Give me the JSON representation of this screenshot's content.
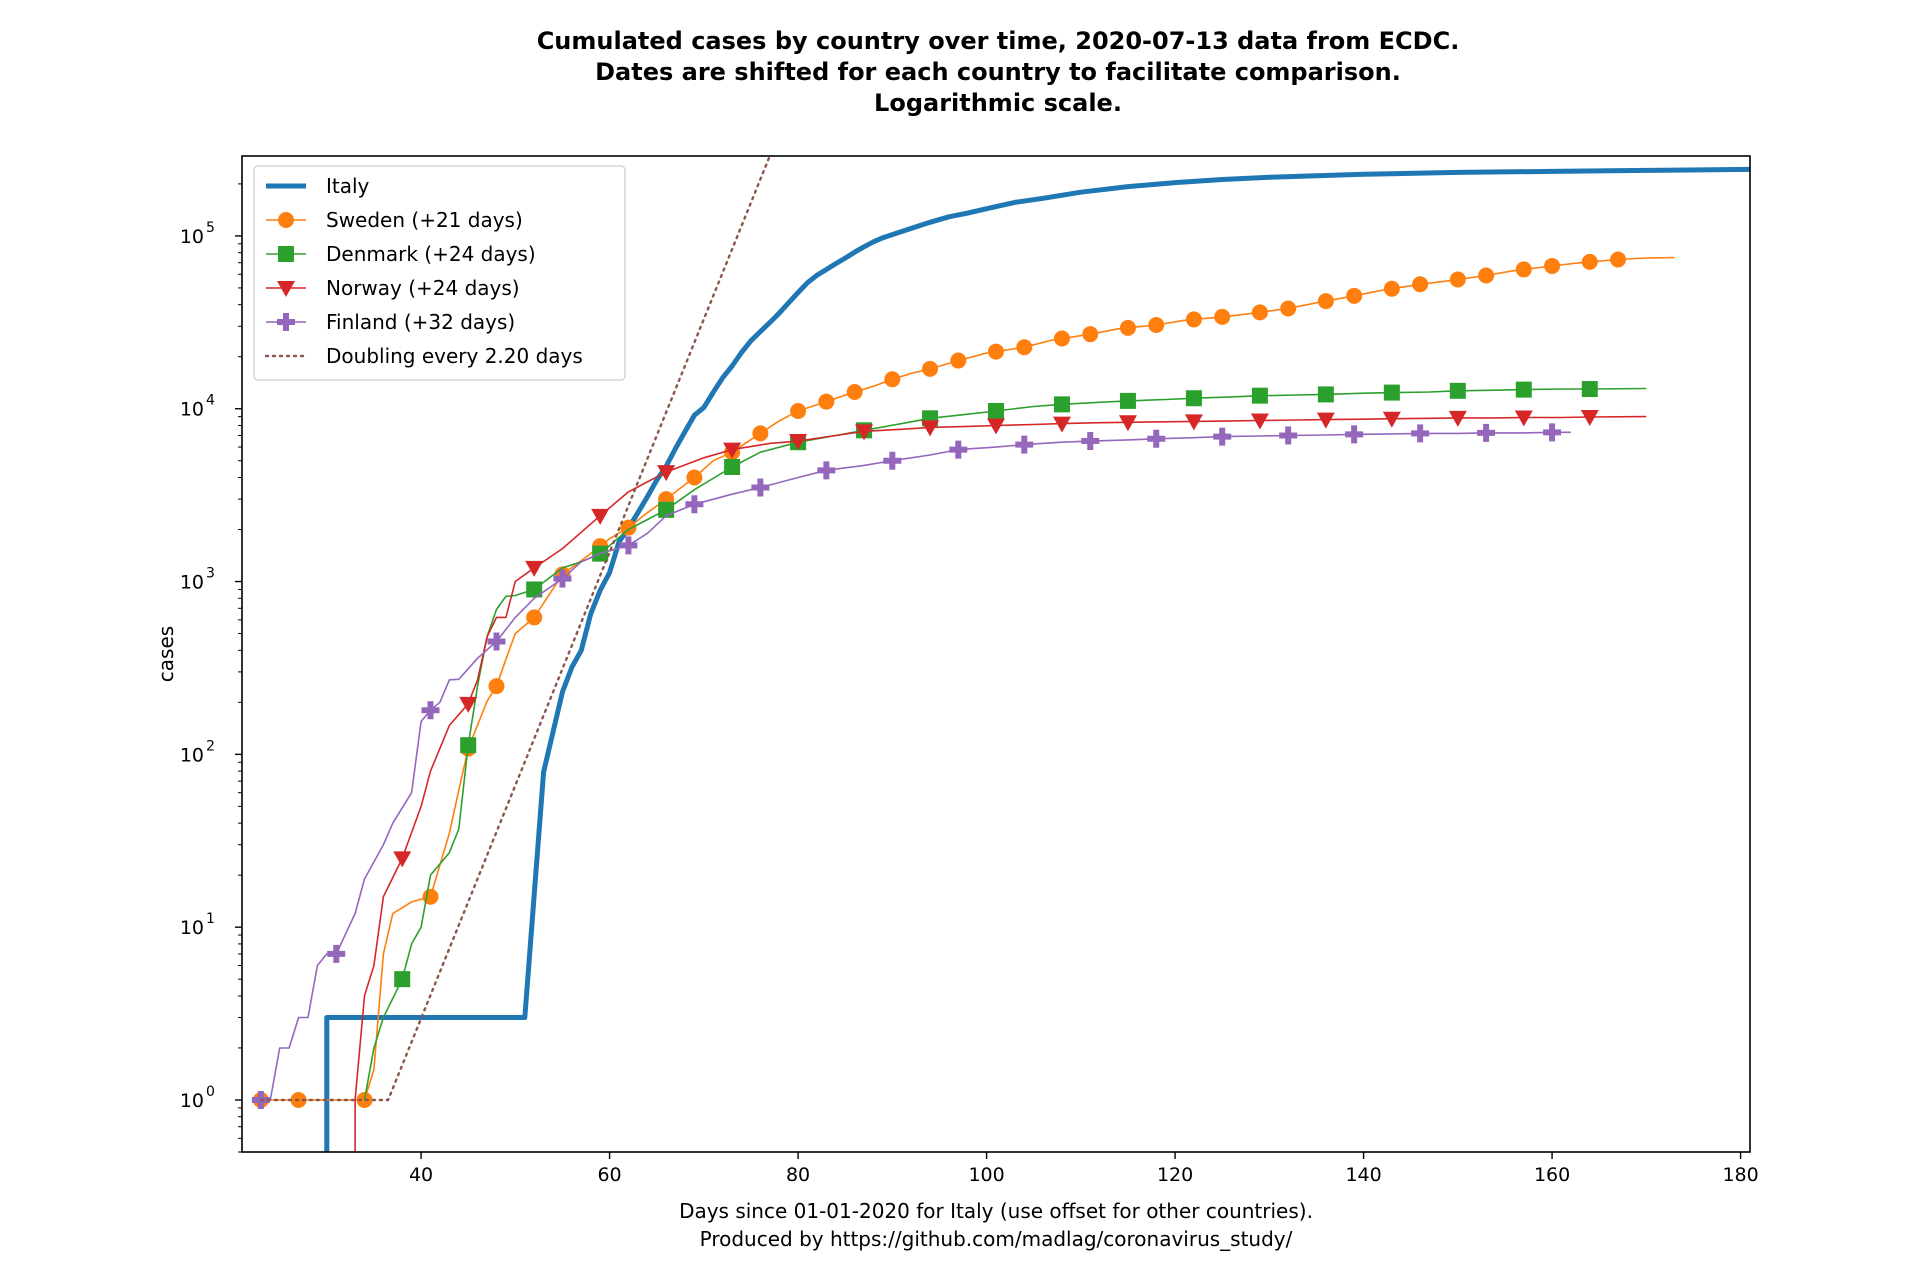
{
  "chart_data": {
    "type": "line",
    "title": [
      "Cumulated cases by country over time, 2020-07-13 data from ECDC.",
      "Dates are shifted for each country to facilitate comparison.",
      "Logarithmic scale."
    ],
    "xlabel": [
      "Days since 01-01-2020 for Italy (use offset for other countries).",
      "Produced by https://github.com/madlag/coronavirus_study/"
    ],
    "ylabel": "cases",
    "x_scale": "linear",
    "y_scale": "log",
    "xlim": [
      21,
      181
    ],
    "ylim": [
      0.5,
      290000
    ],
    "x_ticks": [
      40,
      60,
      80,
      100,
      120,
      140,
      160,
      180
    ],
    "y_ticks": [
      {
        "value": 1,
        "base": "10",
        "exp": "0"
      },
      {
        "value": 10,
        "base": "10",
        "exp": "1"
      },
      {
        "value": 100,
        "base": "10",
        "exp": "2"
      },
      {
        "value": 1000,
        "base": "10",
        "exp": "3"
      },
      {
        "value": 10000,
        "base": "10",
        "exp": "4"
      },
      {
        "value": 100000,
        "base": "10",
        "exp": "5"
      }
    ],
    "grid": false,
    "legend_position": "top-left",
    "series": [
      {
        "name": "Italy",
        "color": "#1f77b4",
        "marker": "none",
        "line_style": "solid",
        "line_weight": "thick",
        "step_points": [
          [
            30,
            0.3
          ],
          [
            30,
            3
          ],
          [
            51,
            3
          ],
          [
            53,
            79
          ],
          [
            55,
            230
          ],
          [
            56,
            320
          ],
          [
            57,
            400
          ],
          [
            58,
            650
          ],
          [
            59,
            888
          ],
          [
            60,
            1128
          ],
          [
            61,
            1694
          ],
          [
            62,
            2036
          ],
          [
            63,
            2502
          ],
          [
            64,
            3089
          ],
          [
            65,
            3858
          ],
          [
            66,
            4636
          ],
          [
            67,
            5883
          ],
          [
            68,
            7375
          ],
          [
            69,
            9172
          ],
          [
            70,
            10149
          ],
          [
            71,
            12462
          ],
          [
            72,
            15113
          ],
          [
            73,
            17660
          ],
          [
            74,
            21157
          ],
          [
            75,
            24747
          ],
          [
            76,
            27980
          ],
          [
            77,
            31506
          ],
          [
            78,
            35713
          ],
          [
            79,
            41035
          ],
          [
            80,
            47021
          ],
          [
            81,
            53578
          ],
          [
            82,
            59138
          ],
          [
            83,
            63927
          ],
          [
            84,
            69176
          ],
          [
            85,
            74386
          ],
          [
            86,
            80539
          ],
          [
            87,
            86498
          ],
          [
            88,
            92472
          ],
          [
            89,
            97689
          ],
          [
            90,
            101739
          ],
          [
            92,
            110574
          ],
          [
            94,
            119827
          ],
          [
            96,
            128948
          ],
          [
            98,
            135586
          ],
          [
            100,
            143626
          ],
          [
            103,
            156363
          ],
          [
            106,
            165155
          ],
          [
            110,
            178972
          ],
          [
            115,
            192994
          ],
          [
            120,
            203591
          ],
          [
            125,
            211938
          ],
          [
            130,
            218268
          ],
          [
            140,
            227364
          ],
          [
            150,
            233019
          ],
          [
            160,
            236305
          ],
          [
            170,
            239410
          ],
          [
            181,
            242639
          ]
        ]
      },
      {
        "name": "Sweden (+21 days)",
        "color": "#ff7f0e",
        "marker": "circle",
        "line_style": "solid",
        "line_weight": "thin",
        "points": [
          [
            23,
            1
          ],
          [
            27,
            1
          ],
          [
            34,
            1
          ],
          [
            35,
            1.5
          ],
          [
            36,
            7
          ],
          [
            37,
            12
          ],
          [
            39,
            14
          ],
          [
            41,
            15
          ],
          [
            43,
            35
          ],
          [
            44,
            62
          ],
          [
            45,
            108
          ],
          [
            47,
            203
          ],
          [
            48,
            248
          ],
          [
            49,
            355
          ],
          [
            50,
            500
          ],
          [
            52,
            620
          ],
          [
            55,
            1100
          ],
          [
            58,
            1450
          ],
          [
            60,
            1770
          ],
          [
            62,
            2050
          ],
          [
            64,
            2500
          ],
          [
            66,
            3000
          ],
          [
            69,
            4000
          ],
          [
            71,
            5000
          ],
          [
            73,
            5600
          ],
          [
            74,
            6100
          ],
          [
            76,
            7200
          ],
          [
            78,
            8500
          ],
          [
            80,
            9700
          ],
          [
            83,
            11000
          ],
          [
            86,
            12500
          ],
          [
            88,
            13500
          ],
          [
            90,
            14800
          ],
          [
            92,
            16000
          ],
          [
            94,
            17000
          ],
          [
            97,
            19000
          ],
          [
            100,
            21000
          ],
          [
            104,
            22700
          ],
          [
            107,
            25000
          ],
          [
            111,
            27000
          ],
          [
            114,
            29000
          ],
          [
            118,
            30500
          ],
          [
            121,
            32500
          ],
          [
            125,
            34000
          ],
          [
            128,
            35500
          ],
          [
            132,
            38000
          ],
          [
            135,
            41000
          ],
          [
            139,
            45000
          ],
          [
            142,
            48500
          ],
          [
            146,
            52500
          ],
          [
            149,
            55000
          ],
          [
            153,
            59000
          ],
          [
            156,
            63000
          ],
          [
            160,
            67000
          ],
          [
            163,
            70000
          ],
          [
            167,
            73000
          ],
          [
            170,
            74500
          ],
          [
            173,
            75000
          ]
        ],
        "marker_x": [
          23,
          27,
          34,
          41,
          45,
          48,
          52,
          55,
          59,
          62,
          66,
          69,
          73,
          76,
          80,
          83,
          86,
          90,
          94,
          97,
          101,
          104,
          108,
          111,
          115,
          118,
          122,
          125,
          129,
          132,
          136,
          139,
          143,
          146,
          150,
          153,
          157,
          160,
          164,
          167
        ]
      },
      {
        "name": "Denmark (+24 days)",
        "color": "#2ca02c",
        "marker": "square",
        "line_style": "solid",
        "line_weight": "thin",
        "points": [
          [
            34,
            1
          ],
          [
            35,
            2
          ],
          [
            36,
            3
          ],
          [
            38,
            5
          ],
          [
            39,
            8
          ],
          [
            40,
            10
          ],
          [
            41,
            20
          ],
          [
            43,
            27
          ],
          [
            44,
            37
          ],
          [
            45,
            113
          ],
          [
            46,
            250
          ],
          [
            47,
            480
          ],
          [
            48,
            690
          ],
          [
            49,
            820
          ],
          [
            50,
            830
          ],
          [
            52,
            900
          ],
          [
            55,
            1200
          ],
          [
            57,
            1300
          ],
          [
            59,
            1450
          ],
          [
            62,
            2000
          ],
          [
            66,
            2600
          ],
          [
            69,
            3400
          ],
          [
            73,
            4600
          ],
          [
            76,
            5600
          ],
          [
            80,
            6400
          ],
          [
            84,
            7000
          ],
          [
            87,
            7500
          ],
          [
            91,
            8200
          ],
          [
            94,
            8800
          ],
          [
            98,
            9300
          ],
          [
            101,
            9700
          ],
          [
            105,
            10300
          ],
          [
            108,
            10600
          ],
          [
            112,
            10900
          ],
          [
            115,
            11100
          ],
          [
            119,
            11300
          ],
          [
            122,
            11500
          ],
          [
            126,
            11700
          ],
          [
            129,
            11900
          ],
          [
            133,
            12000
          ],
          [
            136,
            12100
          ],
          [
            140,
            12300
          ],
          [
            143,
            12400
          ],
          [
            147,
            12500
          ],
          [
            150,
            12700
          ],
          [
            154,
            12800
          ],
          [
            157,
            12900
          ],
          [
            161,
            13000
          ],
          [
            164,
            13000
          ],
          [
            170,
            13100
          ]
        ],
        "marker_x": [
          38,
          45,
          52,
          59,
          66,
          73,
          80,
          87,
          94,
          101,
          108,
          115,
          122,
          129,
          136,
          143,
          150,
          157,
          164
        ]
      },
      {
        "name": "Norway (+24 days)",
        "color": "#d62728",
        "marker": "triangle-down",
        "line_style": "solid",
        "line_weight": "thin",
        "points": [
          [
            33,
            0.5
          ],
          [
            33,
            1
          ],
          [
            34,
            4
          ],
          [
            35,
            6
          ],
          [
            36,
            15
          ],
          [
            38,
            25
          ],
          [
            40,
            50
          ],
          [
            41,
            80
          ],
          [
            43,
            147
          ],
          [
            45,
            196
          ],
          [
            46,
            270
          ],
          [
            47,
            480
          ],
          [
            48,
            620
          ],
          [
            49,
            620
          ],
          [
            50,
            1000
          ],
          [
            52,
            1200
          ],
          [
            55,
            1550
          ],
          [
            59,
            2400
          ],
          [
            62,
            3300
          ],
          [
            66,
            4300
          ],
          [
            70,
            5200
          ],
          [
            73,
            5800
          ],
          [
            77,
            6300
          ],
          [
            80,
            6500
          ],
          [
            84,
            7000
          ],
          [
            87,
            7400
          ],
          [
            91,
            7600
          ],
          [
            94,
            7800
          ],
          [
            98,
            7900
          ],
          [
            101,
            8000
          ],
          [
            105,
            8100
          ],
          [
            108,
            8200
          ],
          [
            112,
            8300
          ],
          [
            115,
            8350
          ],
          [
            119,
            8400
          ],
          [
            122,
            8450
          ],
          [
            126,
            8500
          ],
          [
            129,
            8550
          ],
          [
            133,
            8600
          ],
          [
            136,
            8650
          ],
          [
            140,
            8700
          ],
          [
            143,
            8750
          ],
          [
            147,
            8800
          ],
          [
            150,
            8850
          ],
          [
            154,
            8850
          ],
          [
            157,
            8900
          ],
          [
            161,
            8900
          ],
          [
            164,
            8950
          ],
          [
            170,
            9000
          ]
        ],
        "marker_x": [
          38,
          45,
          52,
          59,
          66,
          73,
          80,
          87,
          94,
          101,
          108,
          115,
          122,
          129,
          136,
          143,
          150,
          157,
          164
        ]
      },
      {
        "name": "Finland (+32 days)",
        "color": "#9467bd",
        "marker": "plus",
        "line_style": "solid",
        "line_weight": "thin",
        "points": [
          [
            23,
            1
          ],
          [
            24,
            1
          ],
          [
            25,
            2
          ],
          [
            26,
            2
          ],
          [
            27,
            3
          ],
          [
            28,
            3
          ],
          [
            29,
            6
          ],
          [
            30,
            7
          ],
          [
            31,
            7
          ],
          [
            33,
            12
          ],
          [
            34,
            19
          ],
          [
            36,
            30
          ],
          [
            37,
            40
          ],
          [
            39,
            60
          ],
          [
            40,
            155
          ],
          [
            41,
            180
          ],
          [
            42,
            200
          ],
          [
            43,
            270
          ],
          [
            44,
            272
          ],
          [
            46,
            360
          ],
          [
            48,
            450
          ],
          [
            50,
            620
          ],
          [
            52,
            800
          ],
          [
            55,
            1040
          ],
          [
            57,
            1300
          ],
          [
            59,
            1450
          ],
          [
            62,
            1620
          ],
          [
            64,
            1900
          ],
          [
            66,
            2400
          ],
          [
            69,
            2800
          ],
          [
            73,
            3200
          ],
          [
            76,
            3500
          ],
          [
            80,
            4000
          ],
          [
            83,
            4400
          ],
          [
            87,
            4700
          ],
          [
            90,
            5000
          ],
          [
            94,
            5400
          ],
          [
            97,
            5800
          ],
          [
            101,
            6000
          ],
          [
            104,
            6200
          ],
          [
            108,
            6400
          ],
          [
            111,
            6500
          ],
          [
            115,
            6600
          ],
          [
            118,
            6700
          ],
          [
            122,
            6800
          ],
          [
            125,
            6900
          ],
          [
            129,
            6950
          ],
          [
            132,
            7000
          ],
          [
            136,
            7050
          ],
          [
            139,
            7100
          ],
          [
            143,
            7150
          ],
          [
            146,
            7200
          ],
          [
            150,
            7200
          ],
          [
            153,
            7250
          ],
          [
            157,
            7250
          ],
          [
            160,
            7300
          ],
          [
            162,
            7300
          ]
        ],
        "marker_x": [
          23,
          31,
          41,
          48,
          55,
          62,
          69,
          76,
          83,
          90,
          97,
          104,
          111,
          118,
          125,
          132,
          139,
          146,
          153,
          160
        ]
      },
      {
        "name": "Doubling every 2.20 days",
        "color": "#8c564b",
        "marker": "none",
        "line_style": "dotted",
        "line_weight": "medium",
        "points": [
          [
            23,
            1
          ],
          [
            36.5,
            1
          ],
          [
            77,
            290000
          ]
        ]
      }
    ]
  }
}
